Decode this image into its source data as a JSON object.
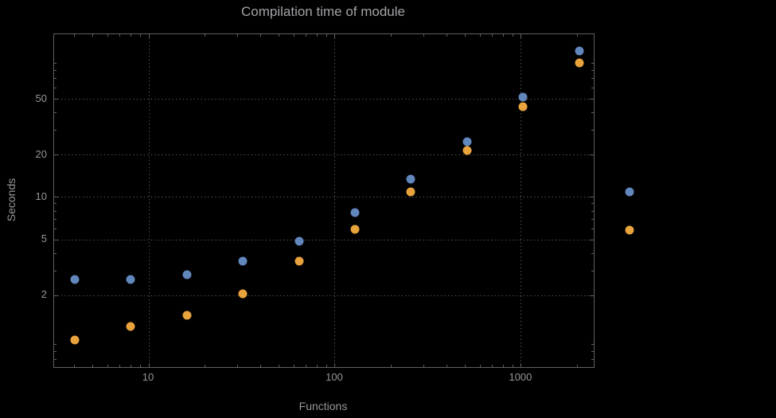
{
  "chart_data": {
    "type": "scatter",
    "title": "Compilation time of module",
    "xlabel": "Functions",
    "ylabel": "Seconds",
    "x_scale": "log",
    "y_scale": "log",
    "grid": "dotted",
    "xlim": [
      3.1,
      2450
    ],
    "ylim": [
      0.62,
      145
    ],
    "x_ticks": [
      10,
      100,
      1000
    ],
    "x_tick_labels": [
      "10",
      "100",
      "1000"
    ],
    "y_ticks": [
      2,
      5,
      10,
      20,
      50
    ],
    "y_tick_labels": [
      "2",
      "5",
      "10",
      "20",
      "50"
    ],
    "x": [
      4,
      8,
      16,
      32,
      64,
      128,
      256,
      512,
      1024,
      2048
    ],
    "series": [
      {
        "name": "blue",
        "color": "#6287bd",
        "values": [
          2.6,
          2.6,
          2.8,
          3.5,
          4.9,
          7.8,
          13.5,
          25,
          52,
          110
        ]
      },
      {
        "name": "orange",
        "color": "#e8a33d",
        "values": [
          0.96,
          1.2,
          1.45,
          2.05,
          3.5,
          5.9,
          11,
          21.5,
          44,
          91
        ]
      }
    ],
    "legend": {
      "position": "right-outside",
      "markers": [
        {
          "series": "blue",
          "color": "#6287bd"
        },
        {
          "series": "orange",
          "color": "#e8a33d"
        }
      ]
    }
  },
  "colors": {
    "background": "#000000",
    "frame": "#606064",
    "grid": "#515156",
    "text": "#97979b",
    "title": "#a2a3a7"
  }
}
